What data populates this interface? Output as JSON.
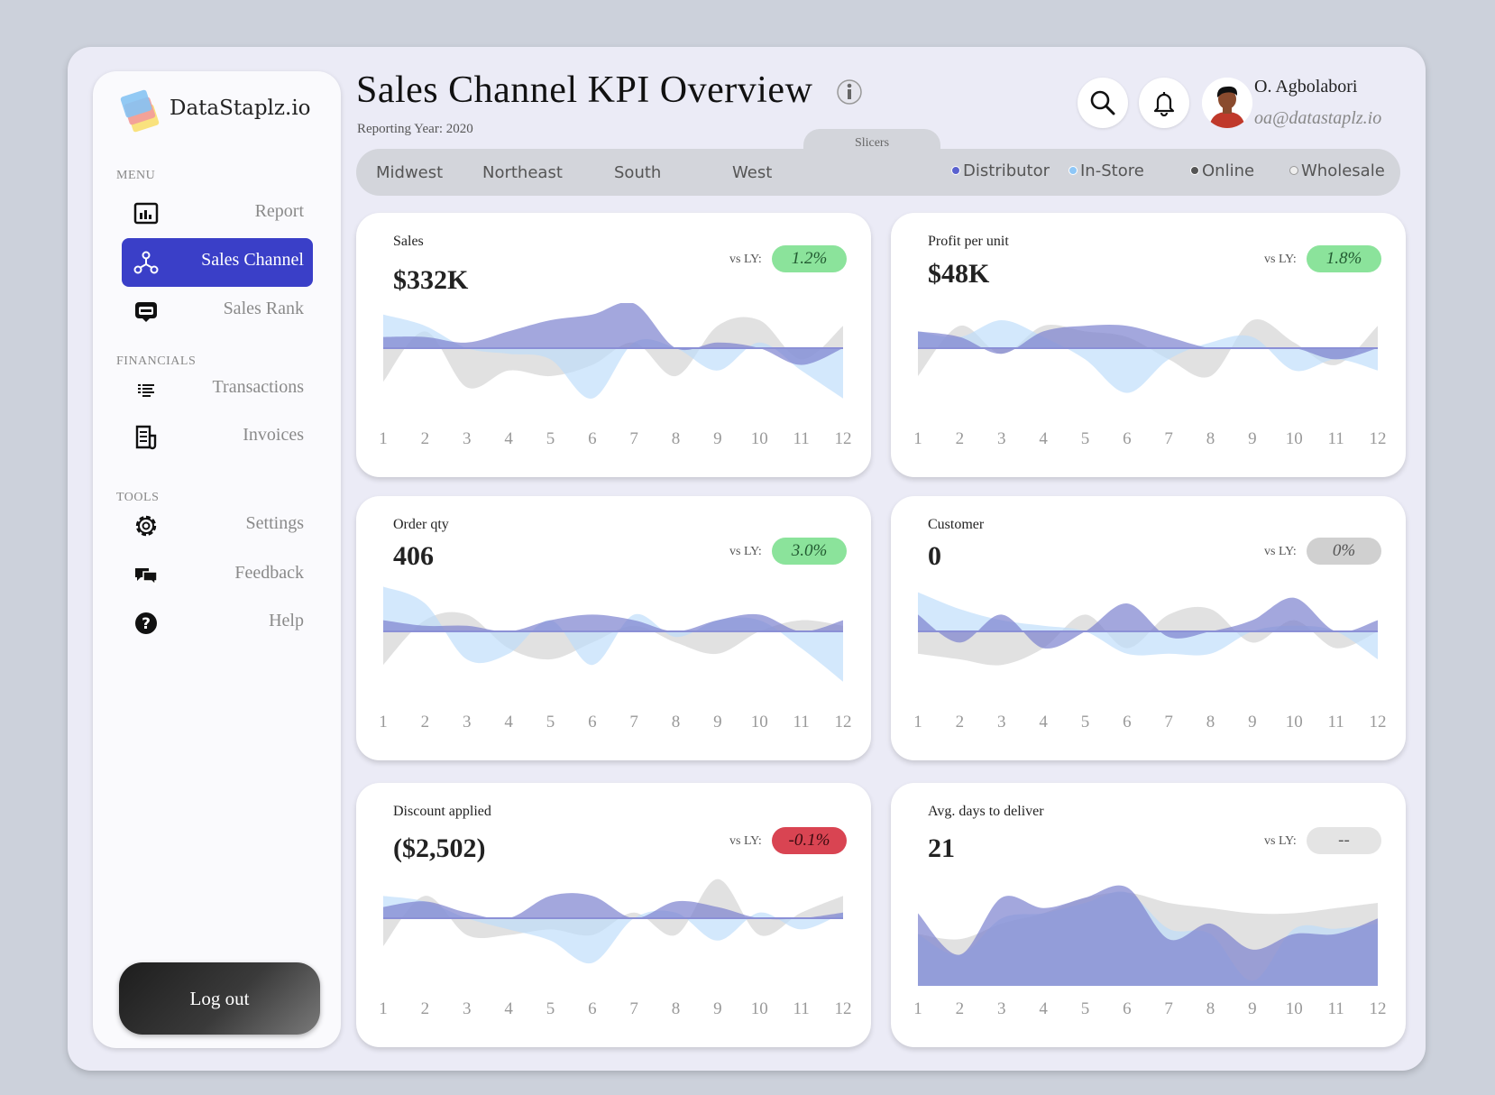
{
  "brand": {
    "name": "DataStaplz.io"
  },
  "sidebar": {
    "menu_label": "MENU",
    "financials_label": "FINANCIALS",
    "tools_label": "TOOLS",
    "items": [
      {
        "label": "Report",
        "icon": "report-icon"
      },
      {
        "label": "Sales Channel",
        "icon": "network-icon",
        "active": true
      },
      {
        "label": "Sales Rank",
        "icon": "rank-icon"
      },
      {
        "label": "Transactions",
        "icon": "list-icon"
      },
      {
        "label": "Invoices",
        "icon": "invoice-icon"
      },
      {
        "label": "Settings",
        "icon": "gear-icon"
      },
      {
        "label": "Feedback",
        "icon": "chat-icon"
      },
      {
        "label": "Help",
        "icon": "help-icon"
      }
    ],
    "logout_label": "Log out"
  },
  "header": {
    "title": "Sales Channel KPI Overview",
    "subtitle": "Reporting Year: 2020",
    "user_name": "O. Agbolabori",
    "user_email": "oa@datastaplz.io"
  },
  "slicers": {
    "tab_label": "Slicers",
    "regions": [
      "Midwest",
      "Northeast",
      "South",
      "West"
    ],
    "channels": [
      {
        "label": "Distributor",
        "color": "#5a62cf"
      },
      {
        "label": "In-Store",
        "color": "#8ec7f7"
      },
      {
        "label": "Online",
        "color": "#555555"
      },
      {
        "label": "Wholesale",
        "color": "#e6e6e6"
      }
    ]
  },
  "colors": {
    "accent": "#3a3fc8",
    "series_purple": "#7c82cf",
    "series_blue": "#bcdcfb",
    "series_gray": "#c8c8c8"
  },
  "kpis": [
    {
      "title": "Sales",
      "value": "$332K",
      "vs_label": "vs LY:",
      "change": "1.2%",
      "status": "green"
    },
    {
      "title": "Profit per unit",
      "value": "$48K",
      "vs_label": "vs LY:",
      "change": "1.8%",
      "status": "green"
    },
    {
      "title": "Order qty",
      "value": "406",
      "vs_label": "vs LY:",
      "change": "3.0%",
      "status": "green"
    },
    {
      "title": "Customer",
      "value": "0",
      "vs_label": "vs LY:",
      "change": "0%",
      "status": "gray"
    },
    {
      "title": "Discount applied",
      "value": "($2,502)",
      "vs_label": "vs LY:",
      "change": "-0.1%",
      "status": "red"
    },
    {
      "title": "Avg. days to deliver",
      "value": "21",
      "vs_label": "vs LY:",
      "change": "--",
      "status": "light"
    }
  ],
  "chart_data": [
    {
      "type": "area",
      "title": "Sales",
      "x": [
        1,
        2,
        3,
        4,
        5,
        6,
        7,
        8,
        9,
        10,
        11,
        12
      ],
      "ylim": [
        -1,
        1
      ],
      "series": [
        {
          "name": "Wholesale",
          "values": [
            -0.6,
            0.3,
            -0.7,
            -0.4,
            -0.5,
            -0.3,
            0.1,
            -0.5,
            0.4,
            0.5,
            -0.2,
            0.4
          ]
        },
        {
          "name": "In-Store",
          "values": [
            0.6,
            0.4,
            0.0,
            -0.1,
            -0.2,
            -0.9,
            0.1,
            0.0,
            -0.4,
            0.1,
            -0.4,
            -0.9
          ]
        },
        {
          "name": "Distributor",
          "values": [
            0.2,
            0.2,
            0.1,
            0.3,
            0.5,
            0.6,
            0.8,
            0.0,
            0.1,
            0.0,
            -0.3,
            0.0
          ]
        }
      ]
    },
    {
      "type": "area",
      "title": "Profit per unit",
      "x": [
        1,
        2,
        3,
        4,
        5,
        6,
        7,
        8,
        9,
        10,
        11,
        12
      ],
      "ylim": [
        -1,
        1
      ],
      "series": [
        {
          "name": "Wholesale",
          "values": [
            -0.5,
            0.4,
            -0.1,
            0.4,
            0.3,
            0.2,
            -0.2,
            -0.5,
            0.5,
            0.1,
            -0.3,
            0.4
          ]
        },
        {
          "name": "In-Store",
          "values": [
            0.3,
            0.2,
            0.5,
            0.2,
            -0.2,
            -0.8,
            -0.2,
            0.1,
            0.2,
            -0.4,
            -0.2,
            -0.4
          ]
        },
        {
          "name": "Distributor",
          "values": [
            0.3,
            0.2,
            -0.1,
            0.3,
            0.4,
            0.4,
            0.2,
            0.0,
            0.0,
            0.0,
            -0.2,
            0.0
          ]
        }
      ]
    },
    {
      "type": "area",
      "title": "Order qty",
      "x": [
        1,
        2,
        3,
        4,
        5,
        6,
        7,
        8,
        9,
        10,
        11,
        12
      ],
      "ylim": [
        -1,
        1
      ],
      "series": [
        {
          "name": "Wholesale",
          "values": [
            -0.6,
            0.2,
            0.3,
            -0.3,
            -0.5,
            -0.2,
            0.1,
            -0.2,
            -0.4,
            0.0,
            0.2,
            0.1
          ]
        },
        {
          "name": "In-Store",
          "values": [
            0.8,
            0.5,
            -0.5,
            -0.4,
            0.2,
            -0.6,
            0.3,
            -0.1,
            0.2,
            0.2,
            -0.3,
            -0.9
          ]
        },
        {
          "name": "Distributor",
          "values": [
            0.2,
            0.1,
            0.1,
            0.0,
            0.2,
            0.3,
            0.2,
            0.0,
            0.2,
            0.3,
            0.0,
            0.2
          ]
        }
      ]
    },
    {
      "type": "area",
      "title": "Customer",
      "x": [
        1,
        2,
        3,
        4,
        5,
        6,
        7,
        8,
        9,
        10,
        11,
        12
      ],
      "ylim": [
        -1,
        1
      ],
      "series": [
        {
          "name": "Wholesale",
          "values": [
            -0.4,
            -0.5,
            -0.6,
            -0.3,
            0.3,
            -0.3,
            0.3,
            0.4,
            -0.2,
            0.2,
            -0.3,
            0.0
          ]
        },
        {
          "name": "In-Store",
          "values": [
            0.7,
            0.4,
            0.2,
            0.1,
            0.0,
            -0.4,
            -0.4,
            -0.4,
            0.0,
            0.1,
            0.0,
            -0.5
          ]
        },
        {
          "name": "Distributor",
          "values": [
            0.3,
            -0.2,
            0.3,
            -0.3,
            0.0,
            0.5,
            -0.1,
            0.0,
            0.2,
            0.6,
            0.0,
            0.2
          ]
        }
      ]
    },
    {
      "type": "area",
      "title": "Discount applied",
      "x": [
        1,
        2,
        3,
        4,
        5,
        6,
        7,
        8,
        9,
        10,
        11,
        12
      ],
      "ylim": [
        -1,
        1
      ],
      "series": [
        {
          "name": "Wholesale",
          "values": [
            -0.5,
            0.4,
            -0.3,
            -0.3,
            -0.2,
            -0.3,
            0.1,
            -0.3,
            0.7,
            -0.3,
            0.1,
            0.4
          ]
        },
        {
          "name": "In-Store",
          "values": [
            0.4,
            0.3,
            0.0,
            -0.2,
            -0.4,
            -0.8,
            0.0,
            0.1,
            -0.4,
            0.1,
            -0.2,
            0.1
          ]
        },
        {
          "name": "Distributor",
          "values": [
            0.2,
            0.3,
            0.1,
            0.0,
            0.4,
            0.4,
            0.0,
            0.3,
            0.2,
            0.0,
            0.0,
            0.1
          ]
        }
      ]
    },
    {
      "type": "area",
      "title": "Avg. days to deliver",
      "x": [
        1,
        2,
        3,
        4,
        5,
        6,
        7,
        8,
        9,
        10,
        11,
        12
      ],
      "ylim": [
        0,
        1
      ],
      "series": [
        {
          "name": "Wholesale",
          "values": [
            0.5,
            0.45,
            0.6,
            0.7,
            0.85,
            0.9,
            0.8,
            0.75,
            0.7,
            0.7,
            0.75,
            0.8
          ]
        },
        {
          "name": "In-Store",
          "values": [
            0.5,
            0.3,
            0.65,
            0.7,
            0.8,
            0.9,
            0.55,
            0.5,
            0.05,
            0.55,
            0.55,
            0.6
          ]
        },
        {
          "name": "Distributor",
          "values": [
            0.7,
            0.3,
            0.85,
            0.75,
            0.85,
            0.95,
            0.45,
            0.6,
            0.35,
            0.5,
            0.5,
            0.65
          ]
        }
      ]
    }
  ]
}
